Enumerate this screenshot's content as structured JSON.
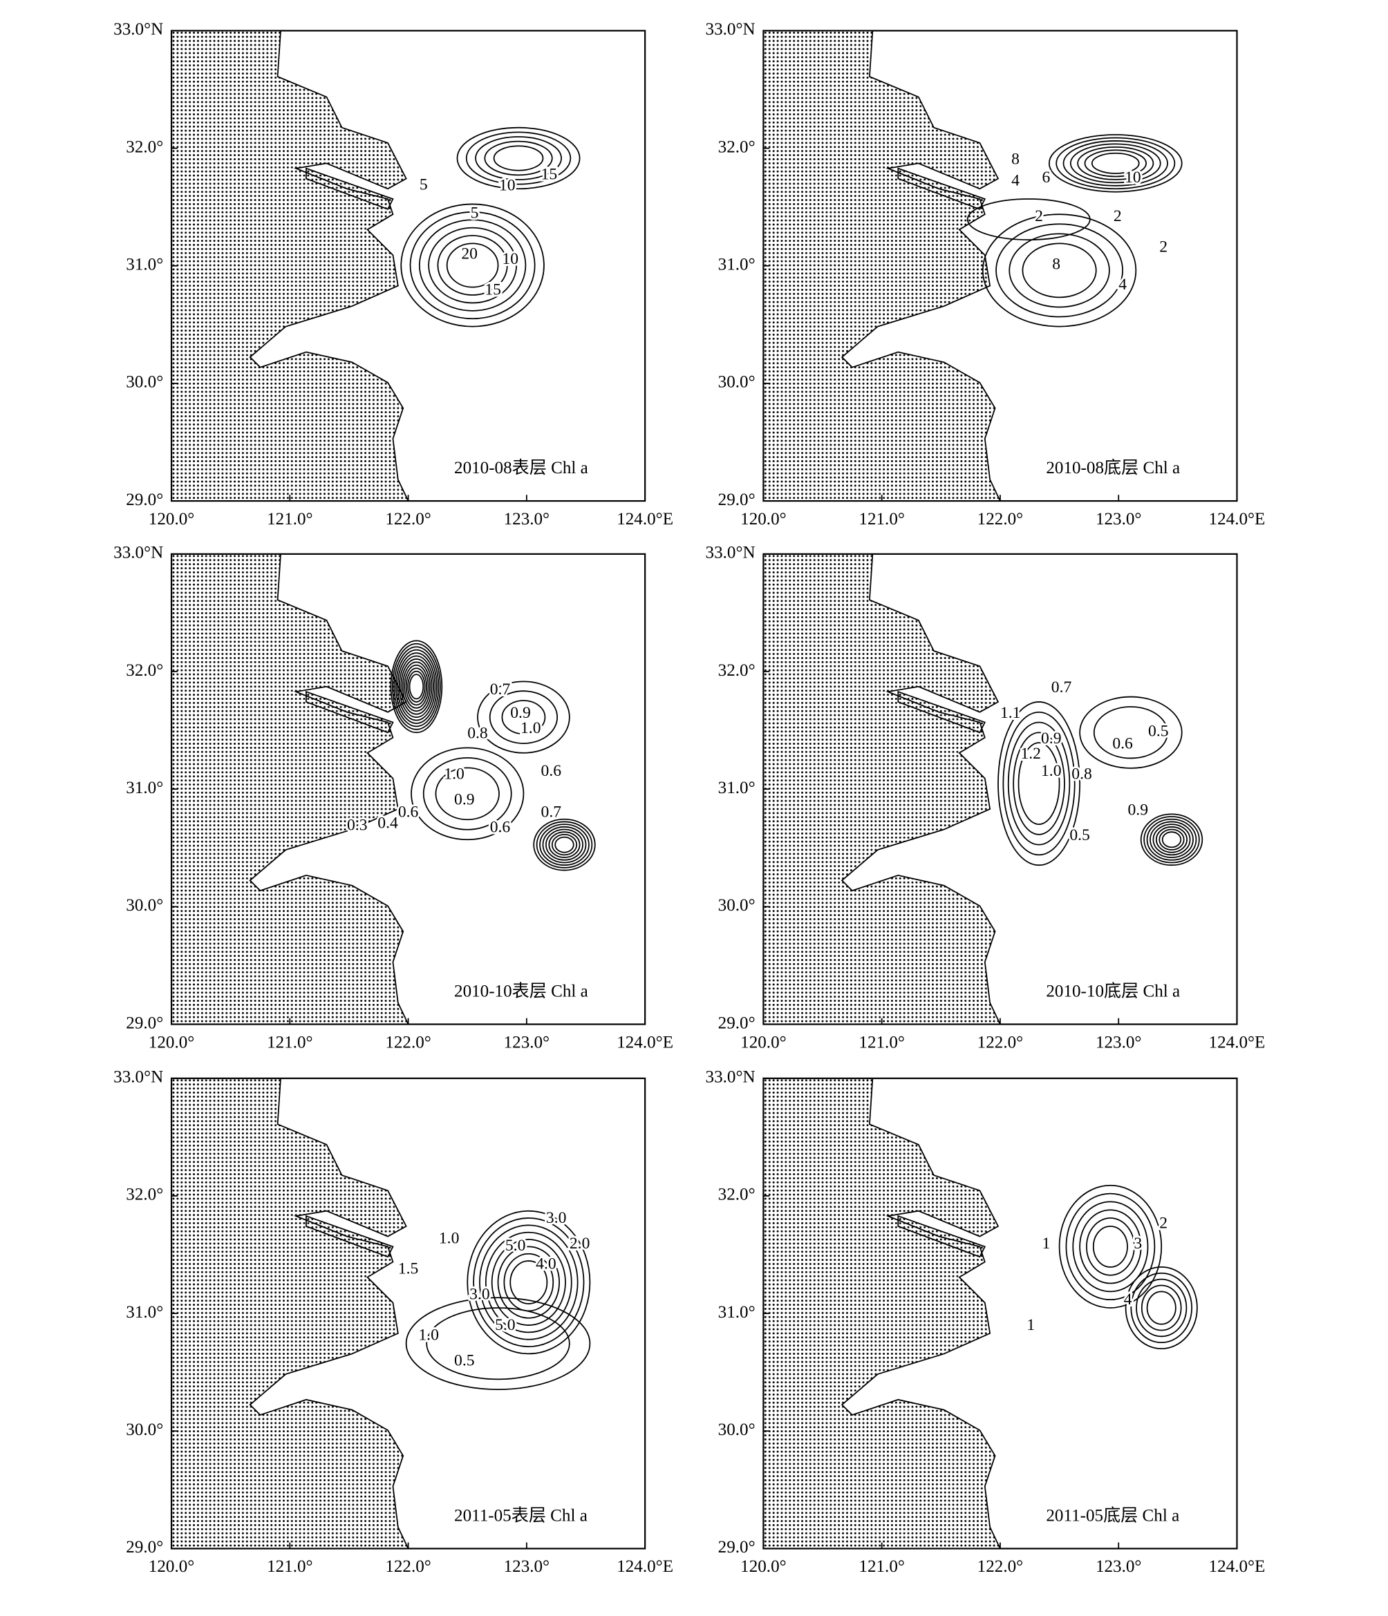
{
  "axes": {
    "xticks": [
      {
        "value": 120,
        "label": "120.0°"
      },
      {
        "value": 121,
        "label": "121.0°"
      },
      {
        "value": 122,
        "label": "122.0°"
      },
      {
        "value": 123,
        "label": "123.0°"
      },
      {
        "value": 124,
        "label": "124.0°E"
      }
    ],
    "yticks": [
      {
        "value": 33,
        "label": "33.0°N"
      },
      {
        "value": 32,
        "label": "32.0°"
      },
      {
        "value": 31,
        "label": "31.0°"
      },
      {
        "value": 30,
        "label": "30.0°"
      },
      {
        "value": 29,
        "label": "29.0°"
      }
    ],
    "xlim": [
      120,
      124
    ],
    "ylim": [
      29,
      33
    ]
  },
  "panels": [
    {
      "title": "2010-08表层 Chl a",
      "contour_labels": [
        "5",
        "10",
        "15",
        "5",
        "10",
        "20",
        "15"
      ]
    },
    {
      "title": "2010-08底层 Chl a",
      "contour_labels": [
        "8",
        "4",
        "6",
        "2",
        "10",
        "2",
        "8",
        "4",
        "2"
      ]
    },
    {
      "title": "2010-10表层 Chl a",
      "contour_labels": [
        "0.7",
        "0.9",
        "1.0",
        "0.8",
        "1.0",
        "0.9",
        "0.6",
        "0.6",
        "0.7",
        "0.3",
        "0.4",
        "0.6"
      ]
    },
    {
      "title": "2010-10底层 Chl a",
      "contour_labels": [
        "0.7",
        "1.1",
        "0.9",
        "1.0",
        "1.2",
        "0.8",
        "0.6",
        "0.5",
        "0.9",
        "0.5"
      ]
    },
    {
      "title": "2011-05表层 Chl a",
      "contour_labels": [
        "1.0",
        "1.5",
        "5.0",
        "3.0",
        "2.0",
        "4.0",
        "3.0",
        "1.0",
        "0.5",
        "5.0"
      ]
    },
    {
      "title": "2011-05底层 Chl a",
      "contour_labels": [
        "1",
        "2",
        "3",
        "4",
        "1"
      ]
    }
  ]
}
